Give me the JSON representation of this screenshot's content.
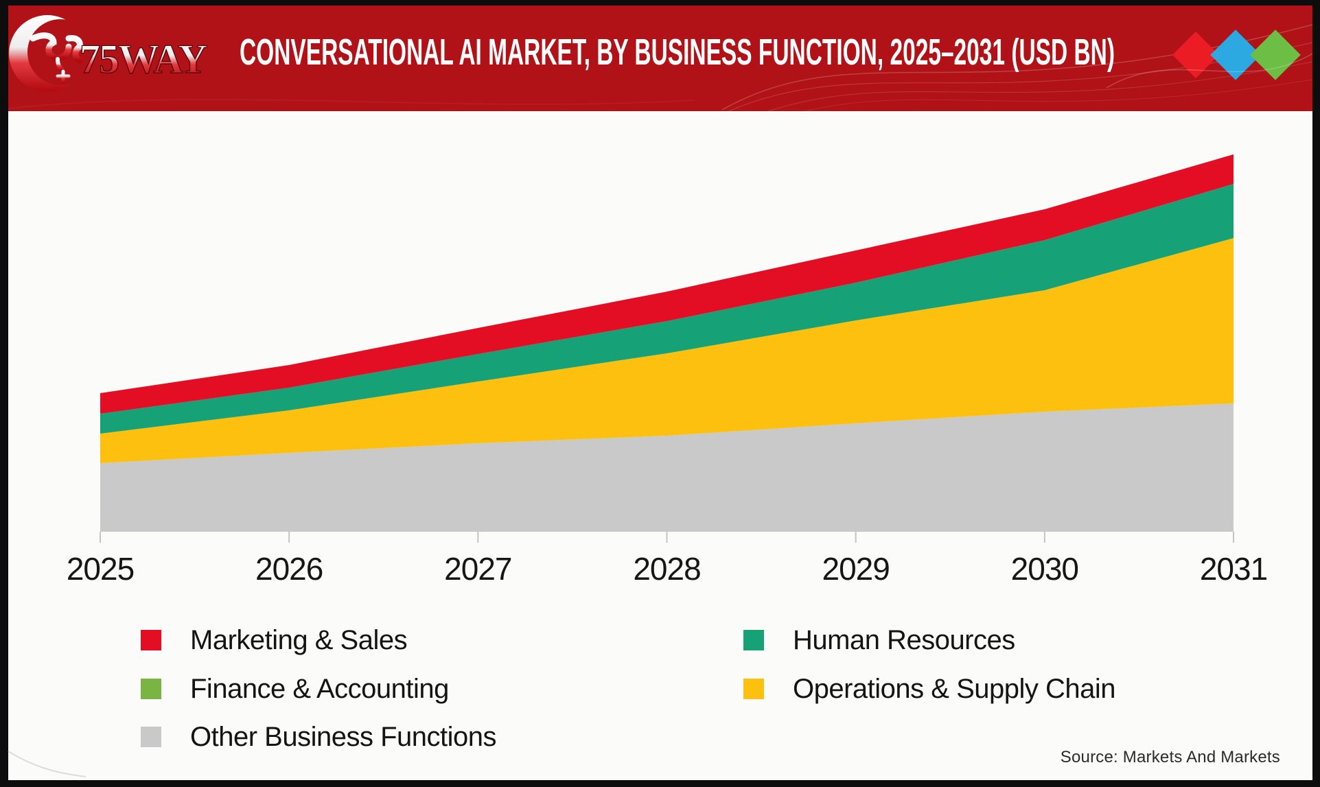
{
  "header": {
    "logo_text": "75WAY",
    "title": "CONVERSATIONAL AI MARKET, BY BUSINESS FUNCTION, 2025–2031 (USD BN)",
    "colors": {
      "background": "#B01217",
      "diamond_red": "#EC1C24",
      "diamond_blue": "#2BA9E0",
      "diamond_green": "#6CBE45"
    }
  },
  "chart_data": {
    "type": "area",
    "stacked": true,
    "title": "Conversational AI Market, by Business Function, 2025–2031 (USD BN)",
    "unit": "USD BN",
    "categories": [
      2025,
      2026,
      2027,
      2028,
      2029,
      2030,
      2031
    ],
    "x_tick_labels": [
      "2025",
      "2026",
      "2027",
      "2028",
      "2029",
      "2030",
      "2031"
    ],
    "series": [
      {
        "name": "Other Business Functions",
        "color": "#C9C9C9",
        "values": [
          10.0,
          11.5,
          12.9,
          14.0,
          15.8,
          17.5,
          18.7
        ]
      },
      {
        "name": "Operations & Supply Chain",
        "color": "#FEC00E",
        "values": [
          4.3,
          6.2,
          9.0,
          12.0,
          15.0,
          17.7,
          24.1
        ]
      },
      {
        "name": "Human Resources",
        "color": "#16A177",
        "values": [
          2.9,
          3.3,
          4.0,
          4.7,
          5.5,
          7.3,
          7.9
        ]
      },
      {
        "name": "Finance & Accounting",
        "color": "#7AB544",
        "values": [
          0,
          0,
          0,
          0,
          0,
          0,
          0
        ]
      },
      {
        "name": "Marketing & Sales",
        "color": "#E40E24",
        "values": [
          3.0,
          3.3,
          3.8,
          4.3,
          4.7,
          4.5,
          4.3
        ]
      }
    ],
    "ylim": [
      0,
      60
    ],
    "y_axis_visible": false,
    "grid": false,
    "legend_position": "bottom"
  },
  "legend": {
    "columns": [
      {
        "items": [
          {
            "label": "Marketing & Sales",
            "color": "#E40E24"
          },
          {
            "label": "Finance & Accounting",
            "color": "#7AB544"
          },
          {
            "label": "Other Business Functions",
            "color": "#C9C9C9"
          }
        ]
      },
      {
        "items": [
          {
            "label": "Human Resources",
            "color": "#16A177"
          },
          {
            "label": "Operations & Supply Chain",
            "color": "#FEC00E"
          }
        ]
      }
    ]
  },
  "footer": {
    "source": "Source: Markets And Markets"
  }
}
